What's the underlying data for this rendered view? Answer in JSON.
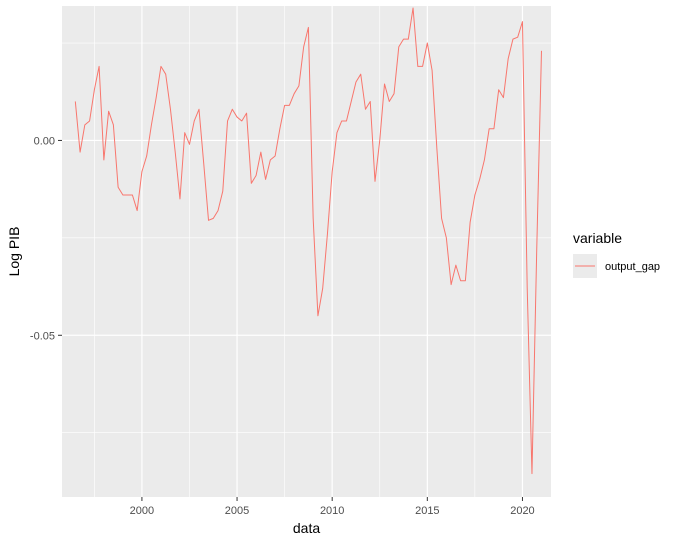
{
  "chart_data": {
    "type": "line",
    "title": "",
    "xlabel": "data",
    "ylabel": "Log PIB",
    "xlim": [
      1995.8,
      2021.5
    ],
    "ylim": [
      -0.0915,
      0.0345
    ],
    "x_ticks": [
      2000,
      2005,
      2010,
      2015,
      2020
    ],
    "x_tick_labels": [
      "2000",
      "2005",
      "2010",
      "2015",
      "2020"
    ],
    "y_ticks": [
      0.0,
      -0.05
    ],
    "y_tick_labels": [
      "0.00",
      "-0.05"
    ],
    "x_minor_ticks": [
      1997.5,
      2002.5,
      2007.5,
      2012.5,
      2017.5
    ],
    "y_minor_ticks": [
      0.025,
      -0.025,
      -0.075
    ],
    "grid": true,
    "legend": {
      "title": "variable",
      "placement": "right"
    },
    "colors": {
      "panel": "#ebebeb",
      "grid": "#ffffff",
      "line": "#f8766d"
    },
    "series": [
      {
        "name": "output_gap",
        "color": "#f8766d",
        "points": [
          [
            1996.5,
            0.01
          ],
          [
            1996.75,
            -0.003
          ],
          [
            1997.0,
            0.004
          ],
          [
            1997.25,
            0.005
          ],
          [
            1997.5,
            0.013
          ],
          [
            1997.75,
            0.019
          ],
          [
            1998.0,
            -0.005
          ],
          [
            1998.25,
            0.0075
          ],
          [
            1998.5,
            0.004
          ],
          [
            1998.75,
            -0.012
          ],
          [
            1999.0,
            -0.014
          ],
          [
            1999.25,
            -0.014
          ],
          [
            1999.5,
            -0.014
          ],
          [
            1999.75,
            -0.018
          ],
          [
            2000.0,
            -0.008
          ],
          [
            2000.25,
            -0.004
          ],
          [
            2000.5,
            0.004
          ],
          [
            2000.75,
            0.011
          ],
          [
            2001.0,
            0.019
          ],
          [
            2001.25,
            0.017
          ],
          [
            2001.5,
            0.008
          ],
          [
            2001.75,
            -0.003
          ],
          [
            2002.0,
            -0.015
          ],
          [
            2002.25,
            0.002
          ],
          [
            2002.5,
            -0.001
          ],
          [
            2002.75,
            0.005
          ],
          [
            2003.0,
            0.008
          ],
          [
            2003.25,
            -0.006
          ],
          [
            2003.5,
            -0.0205
          ],
          [
            2003.75,
            -0.02
          ],
          [
            2004.0,
            -0.018
          ],
          [
            2004.25,
            -0.013
          ],
          [
            2004.5,
            0.005
          ],
          [
            2004.75,
            0.008
          ],
          [
            2005.0,
            0.006
          ],
          [
            2005.25,
            0.005
          ],
          [
            2005.5,
            0.007
          ],
          [
            2005.75,
            -0.011
          ],
          [
            2006.0,
            -0.009
          ],
          [
            2006.25,
            -0.003
          ],
          [
            2006.5,
            -0.01
          ],
          [
            2006.75,
            -0.005
          ],
          [
            2007.0,
            -0.004
          ],
          [
            2007.25,
            0.003
          ],
          [
            2007.5,
            0.009
          ],
          [
            2007.75,
            0.009
          ],
          [
            2008.0,
            0.012
          ],
          [
            2008.25,
            0.014
          ],
          [
            2008.5,
            0.024
          ],
          [
            2008.75,
            0.029
          ],
          [
            2009.0,
            -0.02
          ],
          [
            2009.25,
            -0.045
          ],
          [
            2009.5,
            -0.038
          ],
          [
            2009.75,
            -0.024
          ],
          [
            2010.0,
            -0.008
          ],
          [
            2010.25,
            0.002
          ],
          [
            2010.5,
            0.005
          ],
          [
            2010.75,
            0.005
          ],
          [
            2011.0,
            0.01
          ],
          [
            2011.25,
            0.015
          ],
          [
            2011.5,
            0.017
          ],
          [
            2011.75,
            0.008
          ],
          [
            2012.0,
            0.01
          ],
          [
            2012.25,
            -0.0105
          ],
          [
            2012.5,
            0.0
          ],
          [
            2012.75,
            0.0145
          ],
          [
            2013.0,
            0.01
          ],
          [
            2013.25,
            0.012
          ],
          [
            2013.5,
            0.024
          ],
          [
            2013.75,
            0.026
          ],
          [
            2014.0,
            0.026
          ],
          [
            2014.25,
            0.034
          ],
          [
            2014.5,
            0.019
          ],
          [
            2014.75,
            0.019
          ],
          [
            2015.0,
            0.025
          ],
          [
            2015.25,
            0.018
          ],
          [
            2015.5,
            -0.002
          ],
          [
            2015.75,
            -0.02
          ],
          [
            2016.0,
            -0.025
          ],
          [
            2016.25,
            -0.037
          ],
          [
            2016.5,
            -0.032
          ],
          [
            2016.75,
            -0.036
          ],
          [
            2017.0,
            -0.036
          ],
          [
            2017.25,
            -0.021
          ],
          [
            2017.5,
            -0.014
          ],
          [
            2017.75,
            -0.01
          ],
          [
            2018.0,
            -0.005
          ],
          [
            2018.25,
            0.003
          ],
          [
            2018.5,
            0.003
          ],
          [
            2018.75,
            0.013
          ],
          [
            2019.0,
            0.011
          ],
          [
            2019.25,
            0.021
          ],
          [
            2019.5,
            0.026
          ],
          [
            2019.75,
            0.0265
          ],
          [
            2020.0,
            0.0305
          ],
          [
            2020.25,
            -0.038
          ],
          [
            2020.5,
            -0.0855
          ],
          [
            2020.75,
            -0.028
          ],
          [
            2021.0,
            0.023
          ]
        ]
      }
    ]
  }
}
